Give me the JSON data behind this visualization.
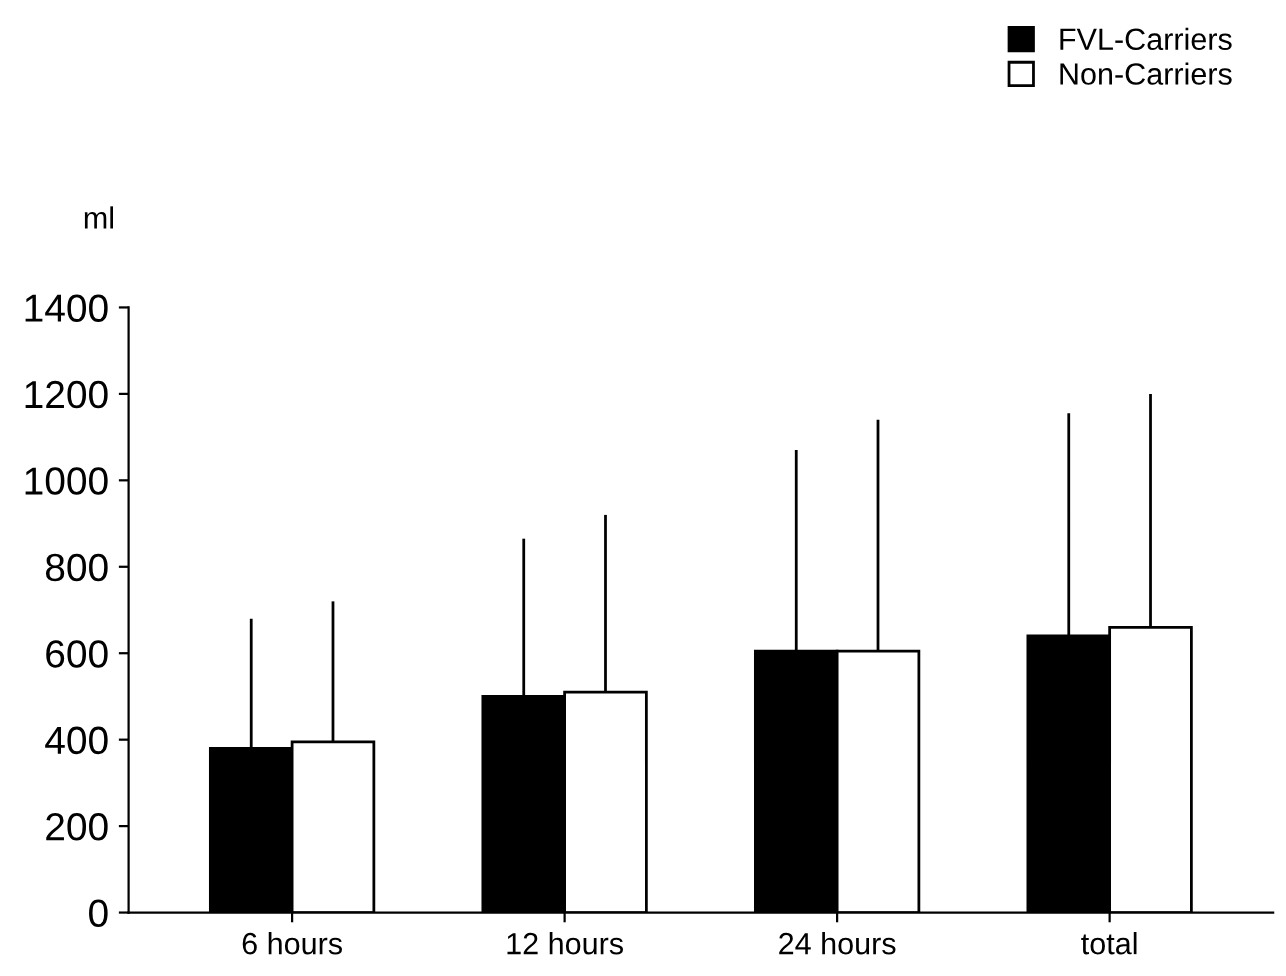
{
  "chart_data": {
    "type": "bar",
    "ylabel": "ml",
    "categories": [
      "6 hours",
      "12 hours",
      "24 hours",
      "total"
    ],
    "series": [
      {
        "name": "FVL-Carriers",
        "color": "#000000",
        "values": [
          380,
          500,
          605,
          640
        ],
        "errors": [
          [
            380,
            680
          ],
          [
            500,
            865
          ],
          [
            605,
            1070
          ],
          [
            640,
            1155
          ]
        ]
      },
      {
        "name": "Non-Carriers",
        "color": "#ffffff",
        "values": [
          395,
          510,
          605,
          660
        ],
        "errors": [
          [
            395,
            720
          ],
          [
            510,
            920
          ],
          [
            605,
            1140
          ],
          [
            660,
            1200
          ]
        ]
      }
    ],
    "ylim": [
      0,
      1400
    ],
    "yticks": [
      0,
      200,
      400,
      600,
      800,
      1000,
      1200,
      1400
    ],
    "grid": false,
    "legend": "top right"
  }
}
